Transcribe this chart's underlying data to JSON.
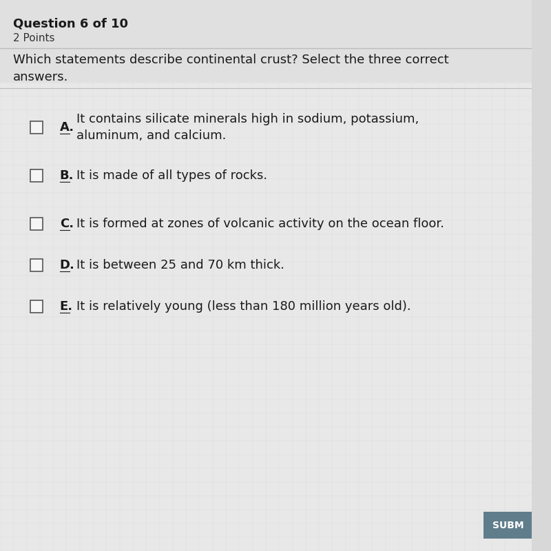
{
  "background_color": "#d8d8d8",
  "content_bg": "#e8e8e8",
  "header_text": "Question 6 of 10",
  "points_text": "2 Points",
  "question_text": "Which statements describe continental crust? Select the three correct\nanswers.",
  "options": [
    {
      "label": "A.",
      "text": "It contains silicate minerals high in sodium, potassium,\naluminum, and calcium."
    },
    {
      "label": "B.",
      "text": "It is made of all types of rocks."
    },
    {
      "label": "C.",
      "text": "It is formed at zones of volcanic activity on the ocean floor."
    },
    {
      "label": "D.",
      "text": "It is between 25 and 70 km thick."
    },
    {
      "label": "E.",
      "text": "It is relatively young (less than 180 million years old)."
    }
  ],
  "submit_btn_color": "#607d8b",
  "submit_btn_text": "SUBM",
  "header_fontsize": 13,
  "points_fontsize": 11,
  "question_fontsize": 13,
  "option_label_fontsize": 13,
  "option_text_fontsize": 13
}
